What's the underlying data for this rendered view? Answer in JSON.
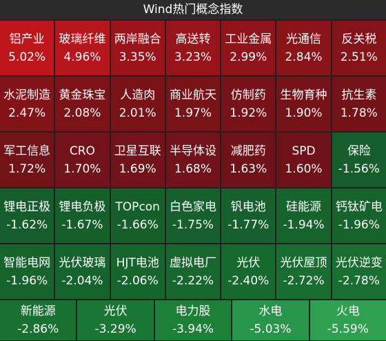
{
  "title": "Wind热门概念指数",
  "rows": [
    [
      {
        "name": "铝产业",
        "change": "5.02%",
        "color": "#bf161c"
      },
      {
        "name": "玻璃纤维",
        "change": "4.96%",
        "color": "#b7171c"
      },
      {
        "name": "两岸融合",
        "change": "3.35%",
        "color": "#9b141a"
      },
      {
        "name": "高送转",
        "change": "3.23%",
        "color": "#97141a"
      },
      {
        "name": "工业金属",
        "change": "2.99%",
        "color": "#8f1419"
      },
      {
        "name": "光通信",
        "change": "2.84%",
        "color": "#8b1419"
      },
      {
        "name": "反关税",
        "change": "2.51%",
        "color": "#851419"
      }
    ],
    [
      {
        "name": "水泥制造",
        "change": "2.47%",
        "color": "#841319"
      },
      {
        "name": "黄金珠宝",
        "change": "2.08%",
        "color": "#7b1319"
      },
      {
        "name": "人造肉",
        "change": "2.01%",
        "color": "#791318"
      },
      {
        "name": "商业航天",
        "change": "1.97%",
        "color": "#781318"
      },
      {
        "name": "仿制药",
        "change": "1.92%",
        "color": "#771318"
      },
      {
        "name": "生物育种",
        "change": "1.90%",
        "color": "#761318"
      },
      {
        "name": "抗生素",
        "change": "1.78%",
        "color": "#731318"
      }
    ],
    [
      {
        "name": "军工信息",
        "change": "1.72%",
        "color": "#721318"
      },
      {
        "name": "CRO",
        "change": "1.70%",
        "color": "#711318"
      },
      {
        "name": "卫星互联",
        "change": "1.69%",
        "color": "#711318"
      },
      {
        "name": "半导体设",
        "change": "1.68%",
        "color": "#711318"
      },
      {
        "name": "减肥药",
        "change": "1.63%",
        "color": "#701318"
      },
      {
        "name": "SPD",
        "change": "1.60%",
        "color": "#6f1318"
      },
      {
        "name": "保险",
        "change": "-1.56%",
        "color": "#155e2b"
      }
    ],
    [
      {
        "name": "锂电正极",
        "change": "-1.62%",
        "color": "#155e2b"
      },
      {
        "name": "锂电负极",
        "change": "-1.67%",
        "color": "#155f2b"
      },
      {
        "name": "TOPcon",
        "change": "-1.66%",
        "color": "#155f2b"
      },
      {
        "name": "白色家电",
        "change": "-1.75%",
        "color": "#15602c"
      },
      {
        "name": "钒电池",
        "change": "-1.77%",
        "color": "#15602c"
      },
      {
        "name": "硅能源",
        "change": "-1.94%",
        "color": "#16632c"
      },
      {
        "name": "钙钛矿电",
        "change": "-1.96%",
        "color": "#16632c"
      }
    ],
    [
      {
        "name": "智能电网",
        "change": "-1.96%",
        "color": "#16632c"
      },
      {
        "name": "光伏玻璃",
        "change": "-2.04%",
        "color": "#16642d"
      },
      {
        "name": "HJT电池",
        "change": "-2.06%",
        "color": "#16652d"
      },
      {
        "name": "虚拟电厂",
        "change": "-2.22%",
        "color": "#17672e"
      },
      {
        "name": "光伏",
        "change": "-2.40%",
        "color": "#176a2e"
      },
      {
        "name": "光伏屋顶",
        "change": "-2.72%",
        "color": "#186e30"
      },
      {
        "name": "光伏逆变",
        "change": "-2.78%",
        "color": "#186f30"
      }
    ],
    [
      {
        "name": "新能源",
        "change": "-2.86%",
        "color": "#197131"
      },
      {
        "name": "光伏",
        "change": "-3.29%",
        "color": "#1a7733"
      },
      {
        "name": "电力股",
        "change": "-3.94%",
        "color": "#1c8037"
      },
      {
        "name": "水电",
        "change": "-5.03%",
        "color": "#28964a"
      },
      {
        "name": "火电",
        "change": "-5.59%",
        "color": "#2fa04f"
      }
    ]
  ]
}
